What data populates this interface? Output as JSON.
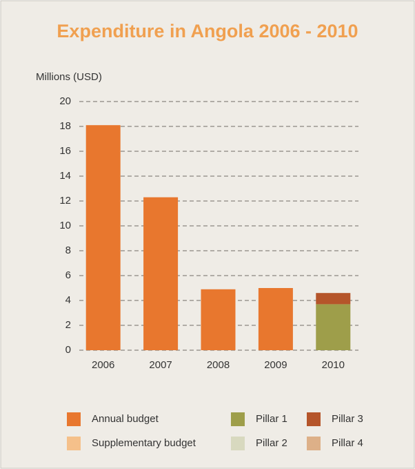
{
  "chart_data": {
    "type": "stacked_bar",
    "title": "Expenditure in Angola 2006 - 2010",
    "y_label": "Millions (USD)",
    "categories": [
      "2006",
      "2007",
      "2008",
      "2009",
      "2010"
    ],
    "series": [
      {
        "name": "Annual budget",
        "color": "#e8772e",
        "values": [
          18.1,
          12.3,
          4.9,
          5.0,
          0
        ]
      },
      {
        "name": "Supplementary budget",
        "color": "#f5c08a",
        "values": [
          0,
          0,
          0,
          0,
          0
        ]
      },
      {
        "name": "Pillar 1",
        "color": "#9e9e4a",
        "values": [
          0,
          0,
          0,
          0,
          3.7
        ]
      },
      {
        "name": "Pillar 2",
        "color": "#d8d9bf",
        "values": [
          0,
          0,
          0,
          0,
          0
        ]
      },
      {
        "name": "Pillar 3",
        "color": "#b5552a",
        "values": [
          0,
          0,
          0,
          0,
          0.9
        ]
      },
      {
        "name": "Pillar 4",
        "color": "#ddb088",
        "values": [
          0,
          0,
          0,
          0,
          0
        ]
      }
    ],
    "ylim": [
      0,
      20
    ],
    "yticks": [
      0,
      2,
      4,
      6,
      8,
      10,
      12,
      14,
      16,
      18,
      20
    ],
    "grid": true
  }
}
